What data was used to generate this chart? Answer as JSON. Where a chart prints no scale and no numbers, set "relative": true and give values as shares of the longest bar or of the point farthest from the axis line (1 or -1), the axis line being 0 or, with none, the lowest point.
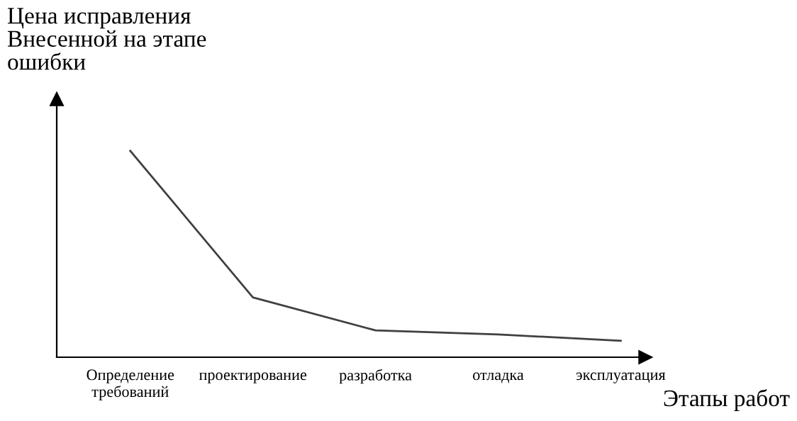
{
  "chart_data": {
    "type": "line",
    "relative": true,
    "ylabel": "Цена исправления\nВнесенной на этапе\nошибки",
    "xlabel": "Этапы работ",
    "categories": [
      "Определение\nтребований",
      "проектирование",
      "разработка",
      "отладка",
      "эксплуатация"
    ],
    "series": [
      {
        "color": "#404040",
        "values": [
          1,
          0.29,
          0.13,
          0.11,
          0.08
        ]
      }
    ],
    "grid": false,
    "legend": false,
    "marker": "none",
    "line_style": "solid"
  }
}
